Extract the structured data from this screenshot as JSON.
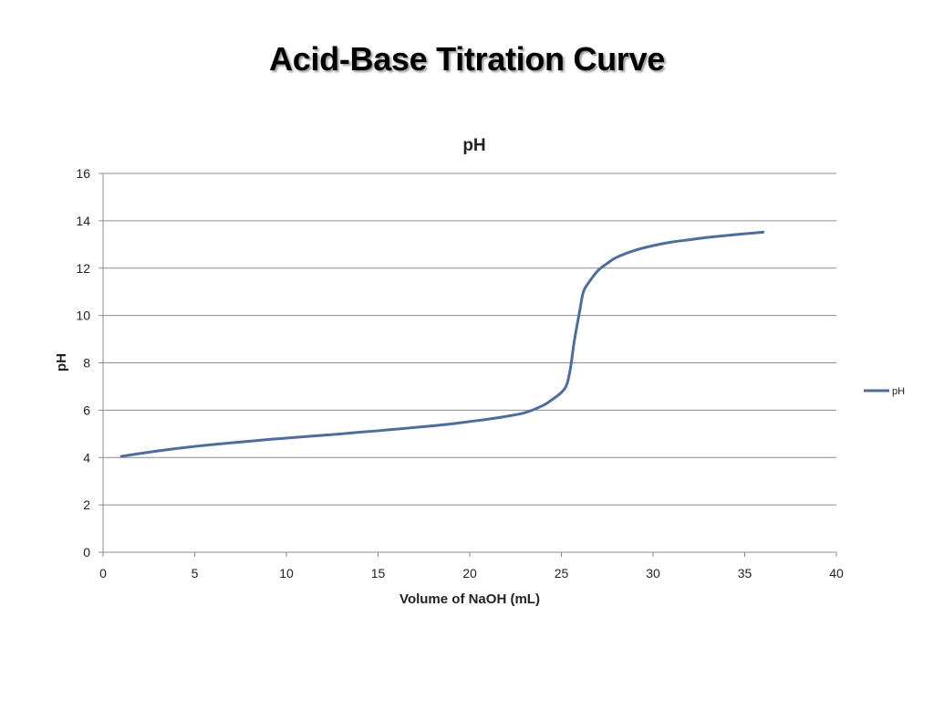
{
  "slide": {
    "title": "Acid-Base Titration Curve"
  },
  "chart_data": {
    "type": "line",
    "title": "pH",
    "xlabel": "Volume of NaOH (mL)",
    "ylabel": "pH",
    "xlim": [
      0,
      40
    ],
    "ylim": [
      0,
      16
    ],
    "x_ticks": [
      0,
      5,
      10,
      15,
      20,
      25,
      30,
      35,
      40
    ],
    "y_ticks": [
      0,
      2,
      4,
      6,
      8,
      10,
      12,
      14,
      16
    ],
    "grid": "horizontal",
    "legend": "right",
    "series": [
      {
        "name": "pH",
        "color": "#4f6d9a",
        "x": [
          1,
          2,
          3,
          4,
          5,
          6,
          7,
          8,
          9,
          10,
          11,
          12,
          13,
          14,
          15,
          16,
          17,
          18,
          19,
          20,
          21,
          22,
          23,
          24,
          24.5,
          25,
          25.3,
          25.5,
          25.7,
          26,
          26.2,
          26.5,
          27,
          27.5,
          28,
          29,
          30,
          31,
          32,
          33,
          34,
          35,
          36
        ],
        "values": [
          4.05,
          4.17,
          4.28,
          4.38,
          4.47,
          4.55,
          4.62,
          4.69,
          4.76,
          4.82,
          4.88,
          4.94,
          5.0,
          5.07,
          5.13,
          5.2,
          5.27,
          5.34,
          5.42,
          5.52,
          5.62,
          5.74,
          5.89,
          6.2,
          6.45,
          6.75,
          7.1,
          7.8,
          8.9,
          10.2,
          11.0,
          11.4,
          11.9,
          12.2,
          12.45,
          12.75,
          12.95,
          13.1,
          13.2,
          13.3,
          13.38,
          13.45,
          13.52
        ]
      }
    ]
  }
}
